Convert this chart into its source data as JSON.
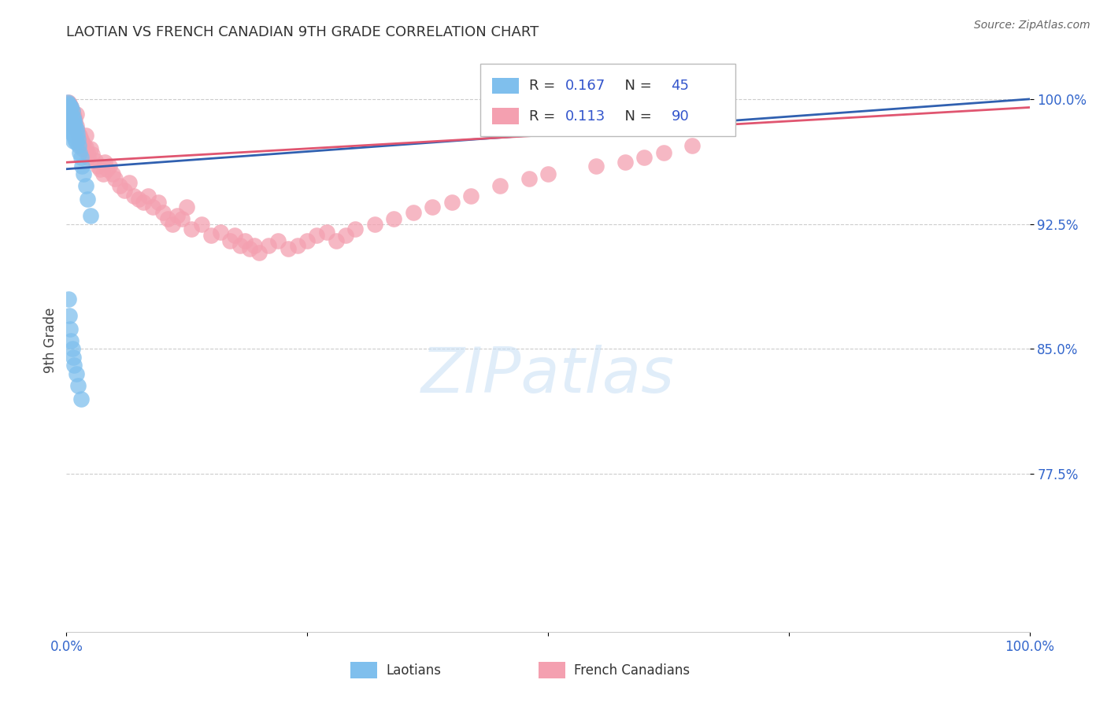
{
  "title": "LAOTIAN VS FRENCH CANADIAN 9TH GRADE CORRELATION CHART",
  "source": "Source: ZipAtlas.com",
  "ylabel": "9th Grade",
  "ytick_labels": [
    "77.5%",
    "85.0%",
    "92.5%",
    "100.0%"
  ],
  "ytick_values": [
    0.775,
    0.85,
    0.925,
    1.0
  ],
  "xlim": [
    0.0,
    1.0
  ],
  "ylim": [
    0.68,
    1.03
  ],
  "laotian_color": "#7fbfed",
  "french_color": "#f4a0b0",
  "trend_laotian_color": "#3060b0",
  "trend_french_color": "#e05570",
  "legend_R_laotian": "0.167",
  "legend_N_laotian": "45",
  "legend_R_french": "0.113",
  "legend_N_french": "90",
  "laotian_x": [
    0.001,
    0.002,
    0.002,
    0.003,
    0.003,
    0.003,
    0.004,
    0.004,
    0.004,
    0.005,
    0.005,
    0.005,
    0.005,
    0.006,
    0.006,
    0.006,
    0.007,
    0.007,
    0.007,
    0.008,
    0.008,
    0.009,
    0.009,
    0.01,
    0.01,
    0.011,
    0.012,
    0.013,
    0.014,
    0.015,
    0.016,
    0.018,
    0.02,
    0.022,
    0.025,
    0.002,
    0.003,
    0.004,
    0.005,
    0.006,
    0.007,
    0.008,
    0.01,
    0.012,
    0.015
  ],
  "laotian_y": [
    0.998,
    0.997,
    0.993,
    0.996,
    0.99,
    0.985,
    0.994,
    0.988,
    0.982,
    0.995,
    0.991,
    0.987,
    0.981,
    0.993,
    0.986,
    0.979,
    0.989,
    0.983,
    0.975,
    0.987,
    0.978,
    0.985,
    0.976,
    0.982,
    0.974,
    0.979,
    0.976,
    0.972,
    0.968,
    0.965,
    0.96,
    0.955,
    0.948,
    0.94,
    0.93,
    0.88,
    0.87,
    0.862,
    0.855,
    0.85,
    0.845,
    0.84,
    0.835,
    0.828,
    0.82
  ],
  "french_x": [
    0.002,
    0.003,
    0.003,
    0.004,
    0.004,
    0.005,
    0.005,
    0.006,
    0.006,
    0.007,
    0.007,
    0.008,
    0.008,
    0.009,
    0.01,
    0.01,
    0.011,
    0.012,
    0.013,
    0.014,
    0.015,
    0.015,
    0.016,
    0.017,
    0.018,
    0.02,
    0.02,
    0.022,
    0.023,
    0.025,
    0.027,
    0.03,
    0.032,
    0.035,
    0.038,
    0.04,
    0.042,
    0.045,
    0.048,
    0.05,
    0.055,
    0.06,
    0.065,
    0.07,
    0.075,
    0.08,
    0.085,
    0.09,
    0.095,
    0.1,
    0.105,
    0.11,
    0.115,
    0.12,
    0.125,
    0.13,
    0.14,
    0.15,
    0.16,
    0.17,
    0.175,
    0.18,
    0.185,
    0.19,
    0.195,
    0.2,
    0.21,
    0.22,
    0.23,
    0.24,
    0.25,
    0.26,
    0.27,
    0.28,
    0.29,
    0.3,
    0.32,
    0.34,
    0.36,
    0.38,
    0.4,
    0.42,
    0.45,
    0.48,
    0.5,
    0.55,
    0.58,
    0.6,
    0.62,
    0.65
  ],
  "french_y": [
    0.998,
    0.997,
    0.994,
    0.996,
    0.992,
    0.995,
    0.99,
    0.993,
    0.987,
    0.991,
    0.985,
    0.989,
    0.983,
    0.987,
    0.991,
    0.984,
    0.981,
    0.979,
    0.975,
    0.978,
    0.976,
    0.972,
    0.974,
    0.97,
    0.973,
    0.978,
    0.971,
    0.968,
    0.965,
    0.97,
    0.967,
    0.963,
    0.96,
    0.958,
    0.955,
    0.962,
    0.958,
    0.96,
    0.955,
    0.952,
    0.948,
    0.945,
    0.95,
    0.942,
    0.94,
    0.938,
    0.942,
    0.935,
    0.938,
    0.932,
    0.928,
    0.925,
    0.93,
    0.928,
    0.935,
    0.922,
    0.925,
    0.918,
    0.92,
    0.915,
    0.918,
    0.912,
    0.915,
    0.91,
    0.912,
    0.908,
    0.912,
    0.915,
    0.91,
    0.912,
    0.915,
    0.918,
    0.92,
    0.915,
    0.918,
    0.922,
    0.925,
    0.928,
    0.932,
    0.935,
    0.938,
    0.942,
    0.948,
    0.952,
    0.955,
    0.96,
    0.962,
    0.965,
    0.968,
    0.972
  ],
  "trend_laotian_x0": 0.0,
  "trend_laotian_y0": 0.958,
  "trend_laotian_x1": 1.0,
  "trend_laotian_y1": 1.0,
  "trend_french_x0": 0.0,
  "trend_french_y0": 0.962,
  "trend_french_x1": 1.0,
  "trend_french_y1": 0.995
}
